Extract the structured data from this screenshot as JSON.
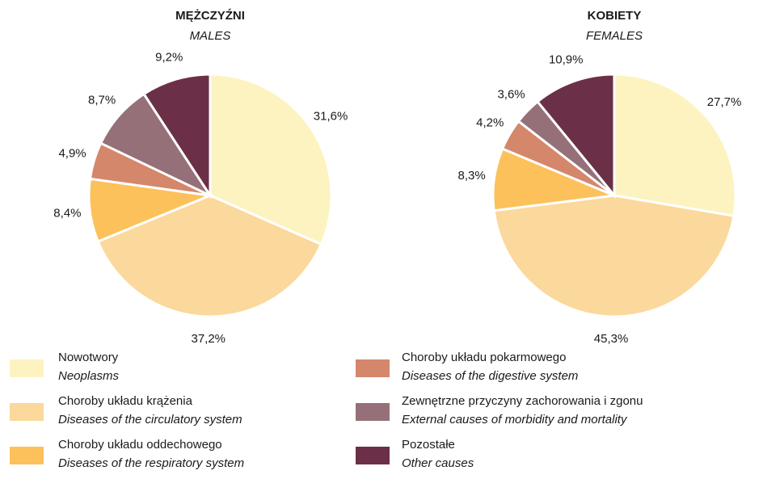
{
  "chart_data": [
    {
      "type": "pie",
      "title": "MĘŻCZYŹNI",
      "subtitle": "MALES",
      "values": [
        31.6,
        37.2,
        8.4,
        4.9,
        8.7,
        9.2
      ],
      "value_labels": [
        "31,6%",
        "37,2%",
        "8,4%",
        "4,9%",
        "8,7%",
        "9,2%"
      ],
      "colors": [
        "#fdf3c0",
        "#fbd89b",
        "#fcc15a",
        "#d4876a",
        "#967079",
        "#6b3047"
      ]
    },
    {
      "type": "pie",
      "title": "KOBIETY",
      "subtitle": "FEMALES",
      "values": [
        27.7,
        45.3,
        8.3,
        4.2,
        3.6,
        10.9
      ],
      "value_labels": [
        "27,7%",
        "45,3%",
        "8,3%",
        "4,2%",
        "3,6%",
        "10,9%"
      ],
      "colors": [
        "#fdf3c0",
        "#fbd89b",
        "#fcc15a",
        "#d4876a",
        "#967079",
        "#6b3047"
      ]
    }
  ],
  "legend": {
    "categories": [
      "Nowotwory",
      "Choroby układu krążenia",
      "Choroby układu oddechowego",
      "Choroby układu pokarmowego",
      "Zewnętrzne przyczyny zachorowania i zgonu",
      "Pozostałe"
    ],
    "categories_en": [
      "Neoplasms",
      "Diseases of the circulatory system",
      "Diseases of the respiratory system",
      "Diseases of the digestive system",
      "External causes of morbidity and mortality",
      "Other causes"
    ],
    "colors": [
      "#fdf3c0",
      "#fbd89b",
      "#fcc15a",
      "#d4876a",
      "#967079",
      "#6b3047"
    ]
  }
}
